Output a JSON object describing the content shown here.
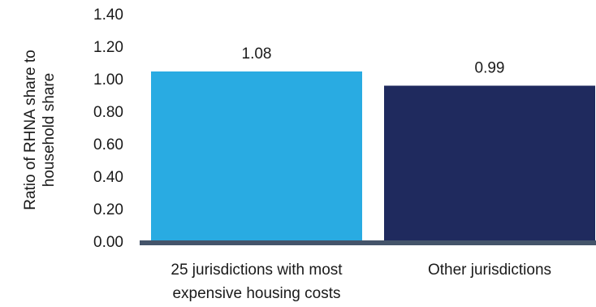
{
  "chart_data": {
    "type": "bar",
    "title": "",
    "xlabel": "",
    "ylabel_lines": [
      "Ratio of RHNA share to",
      "household share"
    ],
    "categories": [
      [
        "25 jurisdictions with most",
        "expensive housing costs"
      ],
      [
        "Other jurisdictions"
      ]
    ],
    "values": [
      1.08,
      0.99
    ],
    "data_labels": [
      "1.08",
      "0.99"
    ],
    "ylim": [
      0,
      1.4
    ],
    "yticks": [
      0.0,
      0.2,
      0.4,
      0.6,
      0.8,
      1.0,
      1.2,
      1.4
    ],
    "ytick_labels": [
      "0.00",
      "0.20",
      "0.40",
      "0.60",
      "0.80",
      "1.00",
      "1.20",
      "1.40"
    ],
    "grid": false,
    "legend": "none",
    "colors": {
      "bars": [
        "#29abe2",
        "#1f2a5e"
      ],
      "baseline": "#44546a",
      "text": "#1a1a1a"
    }
  }
}
